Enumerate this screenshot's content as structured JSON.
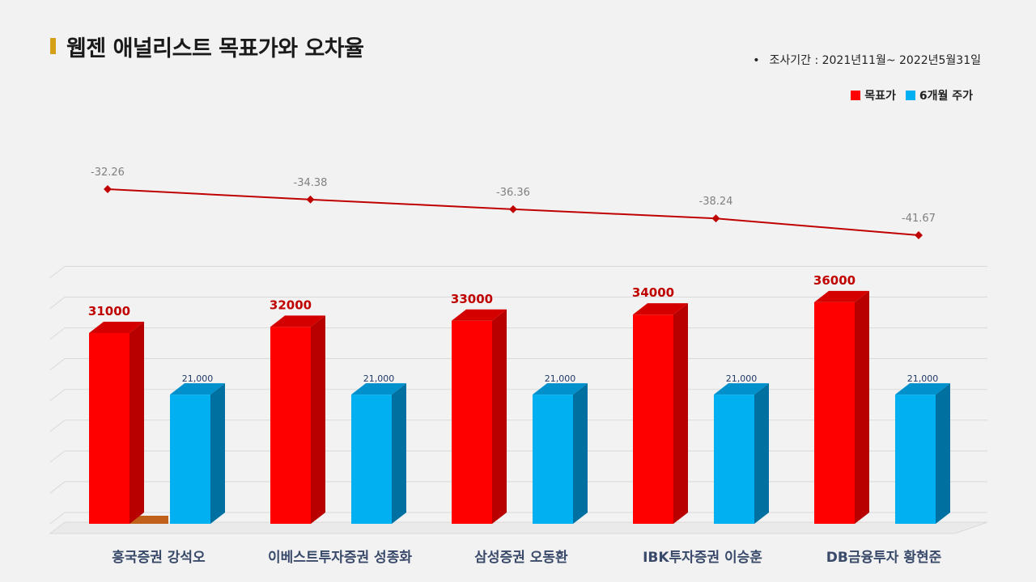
{
  "page": {
    "title": "웹젠 애널리스트 목표가와 오차율",
    "period_bullet": "•",
    "period": "조사기간 : 2021년11월~ 2022년5월31일"
  },
  "colors": {
    "target_front": "#ff0000",
    "target_side": "#b80000",
    "target_top": "#d40000",
    "price_front": "#00b0f0",
    "price_side": "#0070a0",
    "price_top": "#0090cc",
    "line": "#c00000",
    "accent_bar": "#d4a017",
    "empty_base": "#c0601a"
  },
  "chart_data": {
    "type": "bar",
    "categories": [
      "흥국증권 강석오",
      "이베스트투자증권 성종화",
      "삼성증권 오동환",
      "IBK투자증권 이승훈",
      "DB금융투자 황현준"
    ],
    "series": [
      {
        "name": "목표가",
        "values": [
          31000,
          32000,
          33000,
          34000,
          36000
        ],
        "labels": [
          "31000",
          "32000",
          "33000",
          "34000",
          "36000"
        ]
      },
      {
        "name": "6개월 주가",
        "values": [
          21000,
          21000,
          21000,
          21000,
          21000
        ],
        "labels": [
          "21,000",
          "21,000",
          "21,000",
          "21,000",
          "21,000"
        ]
      }
    ],
    "error_rate": {
      "type": "line",
      "values": [
        -32.26,
        -34.38,
        -36.36,
        -38.24,
        -41.67
      ],
      "labels": [
        "-32.26",
        "-34.38",
        "-36.36",
        "-38.24",
        "-41.67"
      ]
    },
    "ylim": [
      0,
      40000
    ],
    "grid": true,
    "legend_position": "top-right",
    "style": "3d-column"
  }
}
